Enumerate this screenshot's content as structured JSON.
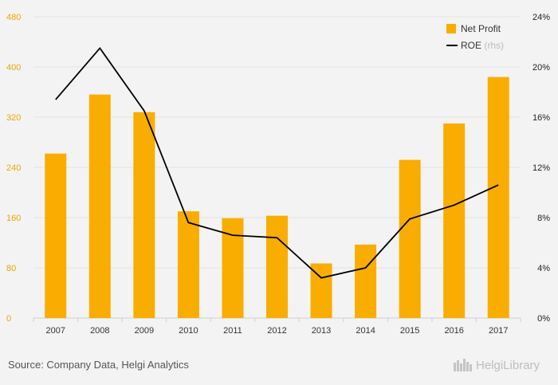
{
  "colors": {
    "bar": "#f9ad00",
    "line": "#000000",
    "left_tick": "#f0a400",
    "right_tick": "#222222",
    "grid": "#e3e3e3",
    "axis": "#cfcfcf"
  },
  "chart_data": {
    "type": "bar",
    "categories": [
      "2007",
      "2008",
      "2009",
      "2010",
      "2011",
      "2012",
      "2013",
      "2014",
      "2015",
      "2016",
      "2017"
    ],
    "series": [
      {
        "name": "Net Profit",
        "type": "bar",
        "axis": "left",
        "values": [
          262,
          356,
          328,
          170,
          159,
          163,
          87,
          117,
          252,
          310,
          384
        ]
      },
      {
        "name": "ROE",
        "type": "line",
        "axis": "right",
        "values": [
          17.4,
          21.5,
          16.5,
          7.6,
          6.6,
          6.4,
          3.2,
          4.0,
          7.9,
          9.0,
          10.6
        ]
      }
    ],
    "ylim": [
      0,
      480
    ],
    "y_ticks": [
      "0",
      "80",
      "160",
      "240",
      "320",
      "400",
      "480"
    ],
    "y2lim": [
      0,
      24
    ],
    "y2_ticks": [
      "0%",
      "4%",
      "8%",
      "12%",
      "16%",
      "20%",
      "24%"
    ],
    "legend": {
      "position": "top-right",
      "entries": [
        {
          "label": "Net Profit",
          "suffix": ""
        },
        {
          "label": "ROE",
          "suffix": "(rhs)"
        }
      ]
    },
    "grid": true
  },
  "footer": {
    "source": "Source: Company Data, Helgi Analytics",
    "logo_text": "HelgiLibrary"
  }
}
